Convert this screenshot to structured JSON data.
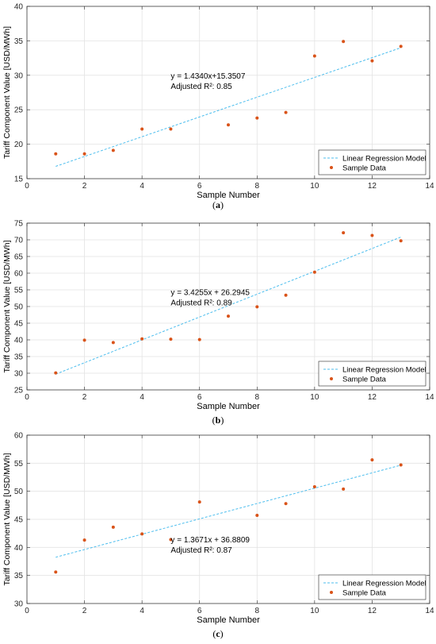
{
  "chart_data": [
    {
      "type": "scatter",
      "panel_label": "a",
      "xlabel": "Sample Number",
      "ylabel": "Tariff Component Value [USD/MWh]",
      "xlim": [
        0,
        14
      ],
      "ylim": [
        15,
        40
      ],
      "xticks": [
        0,
        2,
        4,
        6,
        8,
        10,
        12,
        14
      ],
      "yticks": [
        15,
        20,
        25,
        30,
        35,
        40
      ],
      "grid": true,
      "legend": "bottom-right",
      "series": [
        {
          "name": "Sample Data",
          "kind": "scatter",
          "color": "#D95319",
          "x": [
            1,
            2,
            3,
            4,
            5,
            7,
            8,
            9,
            10,
            11,
            12,
            13
          ],
          "y": [
            18.6,
            18.6,
            19.1,
            22.2,
            22.2,
            22.8,
            23.8,
            24.6,
            32.8,
            34.9,
            32.1,
            34.2
          ]
        },
        {
          "name": "Linear Regression Model",
          "kind": "line",
          "color": "#4DBEEE",
          "slope": 1.434,
          "intercept": 15.3507,
          "x_range": [
            1,
            13
          ]
        }
      ],
      "annotation_eq": "y = 1.4340x+15.3507",
      "annotation_r2": "Adjusted R²: 0.85",
      "annotation_at": [
        5,
        29.5
      ]
    },
    {
      "type": "scatter",
      "panel_label": "b",
      "xlabel": "Sample Number",
      "ylabel": "Tariff Component Value [USD/MWh]",
      "xlim": [
        0,
        14
      ],
      "ylim": [
        25,
        75
      ],
      "xticks": [
        0,
        2,
        4,
        6,
        8,
        10,
        12,
        14
      ],
      "yticks": [
        25,
        30,
        35,
        40,
        45,
        50,
        55,
        60,
        65,
        70,
        75
      ],
      "grid": true,
      "legend": "bottom-right",
      "series": [
        {
          "name": "Sample Data",
          "kind": "scatter",
          "color": "#D95319",
          "x": [
            1,
            2,
            3,
            4,
            5,
            6,
            7,
            8,
            9,
            10,
            11,
            12,
            13
          ],
          "y": [
            30.1,
            39.9,
            39.2,
            40.3,
            40.2,
            40.1,
            47.1,
            49.9,
            53.4,
            60.3,
            72.1,
            71.3,
            69.7
          ]
        },
        {
          "name": "Linear Regression Model",
          "kind": "line",
          "color": "#4DBEEE",
          "slope": 3.4255,
          "intercept": 26.2945,
          "x_range": [
            1,
            13
          ]
        }
      ],
      "annotation_eq": "y = 3.4255x + 26.2945",
      "annotation_r2": "Adjusted R²: 0.89",
      "annotation_at": [
        5,
        53.4
      ]
    },
    {
      "type": "scatter",
      "panel_label": "c",
      "xlabel": "Sample Number",
      "ylabel": "Tariff Component Value [USD/MWh]",
      "xlim": [
        0,
        14
      ],
      "ylim": [
        30,
        60
      ],
      "xticks": [
        0,
        2,
        4,
        6,
        8,
        10,
        12,
        14
      ],
      "yticks": [
        30,
        35,
        40,
        45,
        50,
        55,
        60
      ],
      "grid": true,
      "legend": "bottom-right",
      "series": [
        {
          "name": "Sample Data",
          "kind": "scatter",
          "color": "#D95319",
          "x": [
            1,
            2,
            3,
            4,
            5,
            6,
            8,
            9,
            10,
            11,
            12,
            13
          ],
          "y": [
            35.6,
            41.3,
            43.6,
            42.4,
            41.4,
            48.1,
            45.7,
            47.8,
            50.8,
            50.4,
            55.6,
            54.7
          ]
        },
        {
          "name": "Linear Regression Model",
          "kind": "line",
          "color": "#4DBEEE",
          "slope": 1.3671,
          "intercept": 36.8809,
          "x_range": [
            1,
            13
          ]
        }
      ],
      "annotation_eq": "y = 1.3671x + 36.8809",
      "annotation_r2": "Adjusted R²: 0.87",
      "annotation_at": [
        5,
        40.9
      ]
    }
  ]
}
